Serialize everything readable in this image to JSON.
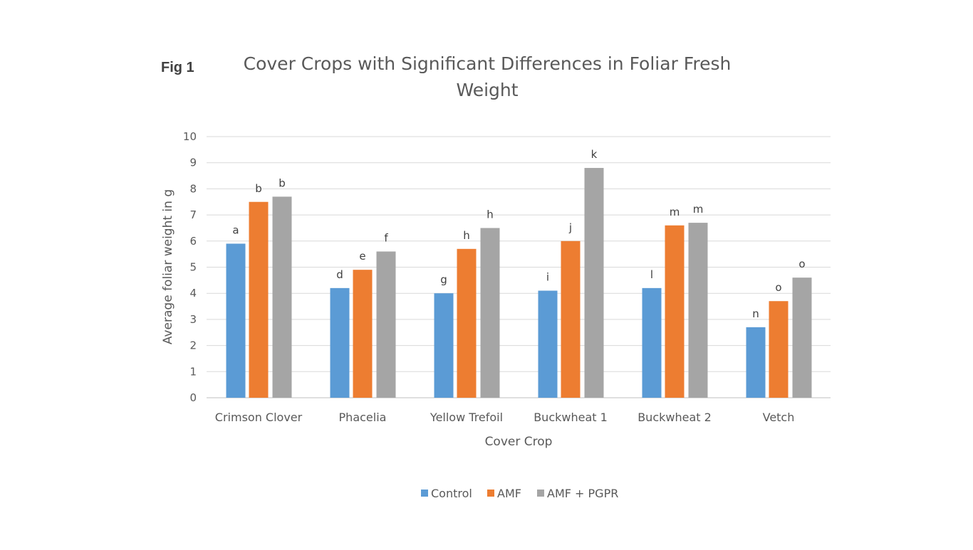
{
  "fig_label": "Fig 1",
  "chart_data": {
    "type": "bar",
    "title": [
      "Cover Crops with Significant Differences in Foliar Fresh",
      "Weight"
    ],
    "xlabel": "Cover Crop",
    "ylabel": "Average foliar weight in g",
    "ylim": [
      0,
      10
    ],
    "yticks": [
      0,
      1,
      2,
      3,
      4,
      5,
      6,
      7,
      8,
      9,
      10
    ],
    "grid": true,
    "legend_position": "bottom",
    "categories": [
      "Crimson Clover",
      "Phacelia",
      "Yellow Trefoil",
      "Buckwheat 1",
      "Buckwheat 2",
      "Vetch"
    ],
    "series": [
      {
        "name": "Control",
        "color": "#5B9BD5",
        "values": [
          5.9,
          4.2,
          4.0,
          4.1,
          4.2,
          2.7
        ],
        "labels": [
          "a",
          "d",
          "g",
          "i",
          "l",
          "n"
        ]
      },
      {
        "name": "AMF",
        "color": "#ED7D31",
        "values": [
          7.5,
          4.9,
          5.7,
          6.0,
          6.6,
          3.7
        ],
        "labels": [
          "b",
          "e",
          "h",
          "j",
          "m",
          "o"
        ]
      },
      {
        "name": "AMF + PGPR",
        "color": "#A5A5A5",
        "values": [
          7.7,
          5.6,
          6.5,
          8.8,
          6.7,
          4.6
        ],
        "labels": [
          "b",
          "f",
          "h",
          "k",
          "m",
          "o"
        ]
      }
    ]
  }
}
